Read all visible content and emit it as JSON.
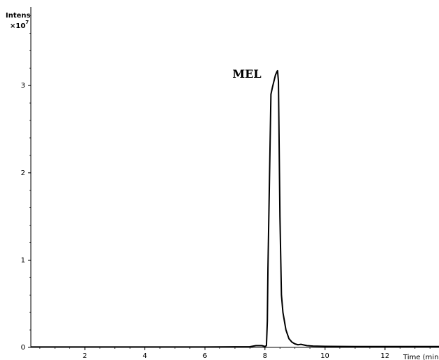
{
  "chart_data": {
    "type": "line",
    "ylabel": "Intens",
    "yunit_prefix": "×10",
    "yunit_exp": "7",
    "xlabel": "Time (min)",
    "xlim": [
      0.2,
      13.8
    ],
    "ylim": [
      0,
      3.9
    ],
    "xticks": [
      2,
      4,
      6,
      8,
      10,
      12
    ],
    "yticks": [
      0,
      1,
      2,
      3
    ],
    "grid": false,
    "annotations": [
      {
        "text": "MEL",
        "x": 7.9,
        "y": 3.12
      }
    ],
    "series": [
      {
        "line_color": "#000000",
        "x": [
          0.2,
          2,
          4,
          6,
          7.5,
          7.7,
          7.8,
          7.9,
          8.0,
          8.05,
          8.08,
          8.1,
          8.15,
          8.2,
          8.25,
          8.3,
          8.35,
          8.4,
          8.42,
          8.45,
          8.5,
          8.55,
          8.6,
          8.7,
          8.8,
          8.9,
          9.0,
          9.1,
          9.2,
          9.4,
          9.6,
          10,
          11,
          12,
          13.8
        ],
        "y": [
          0.005,
          0.005,
          0.005,
          0.005,
          0.008,
          0.02,
          0.02,
          0.02,
          0.01,
          0.02,
          0.3,
          0.9,
          1.9,
          2.9,
          2.98,
          3.05,
          3.12,
          3.16,
          3.17,
          3.05,
          1.5,
          0.6,
          0.4,
          0.2,
          0.1,
          0.06,
          0.04,
          0.03,
          0.035,
          0.02,
          0.015,
          0.012,
          0.01,
          0.01,
          0.01
        ]
      }
    ]
  }
}
